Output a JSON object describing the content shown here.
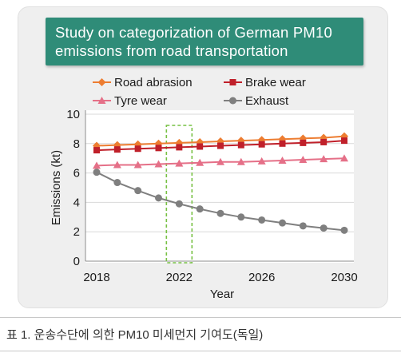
{
  "chart_data": {
    "type": "line",
    "title_lines": [
      "Study on categorization of German PM10",
      "emissions from road transportation"
    ],
    "x": [
      2018,
      2019,
      2020,
      2021,
      2022,
      2023,
      2024,
      2025,
      2026,
      2027,
      2028,
      2029,
      2030
    ],
    "xlabel": "Year",
    "ylabel": "Emissions (kt)",
    "xlim": [
      2018,
      2030
    ],
    "ylim": [
      0,
      10
    ],
    "x_ticks": [
      2018,
      2022,
      2026,
      2030
    ],
    "y_ticks": [
      0,
      2,
      4,
      6,
      8,
      10
    ],
    "grid": "horizontal",
    "legend_position": "top",
    "series": [
      {
        "name": "Road abrasion",
        "color": "#ed7d31",
        "marker": "diamond",
        "values": [
          7.85,
          7.9,
          7.95,
          8.0,
          8.05,
          8.1,
          8.15,
          8.2,
          8.25,
          8.3,
          8.35,
          8.4,
          8.5
        ]
      },
      {
        "name": "Brake wear",
        "color": "#c0202a",
        "marker": "square",
        "values": [
          7.55,
          7.6,
          7.65,
          7.7,
          7.75,
          7.8,
          7.85,
          7.9,
          7.95,
          8.0,
          8.05,
          8.1,
          8.2
        ]
      },
      {
        "name": "Tyre wear",
        "color": "#e57088",
        "marker": "triangle",
        "values": [
          6.5,
          6.55,
          6.55,
          6.6,
          6.65,
          6.7,
          6.75,
          6.75,
          6.8,
          6.85,
          6.9,
          6.95,
          7.0
        ]
      },
      {
        "name": "Exhaust",
        "color": "#7f7f7f",
        "marker": "circle",
        "values": [
          6.05,
          5.35,
          4.8,
          4.3,
          3.9,
          3.55,
          3.25,
          3.0,
          2.8,
          2.6,
          2.4,
          2.25,
          2.1
        ]
      }
    ],
    "highlight": {
      "x": 2022,
      "color": "#77c043"
    }
  },
  "caption": "표 1. 운송수단에 의한 PM10 미세먼지 기여도(독일)",
  "colors": {
    "title_box": "#2f8c78",
    "panel": "#efefef"
  }
}
